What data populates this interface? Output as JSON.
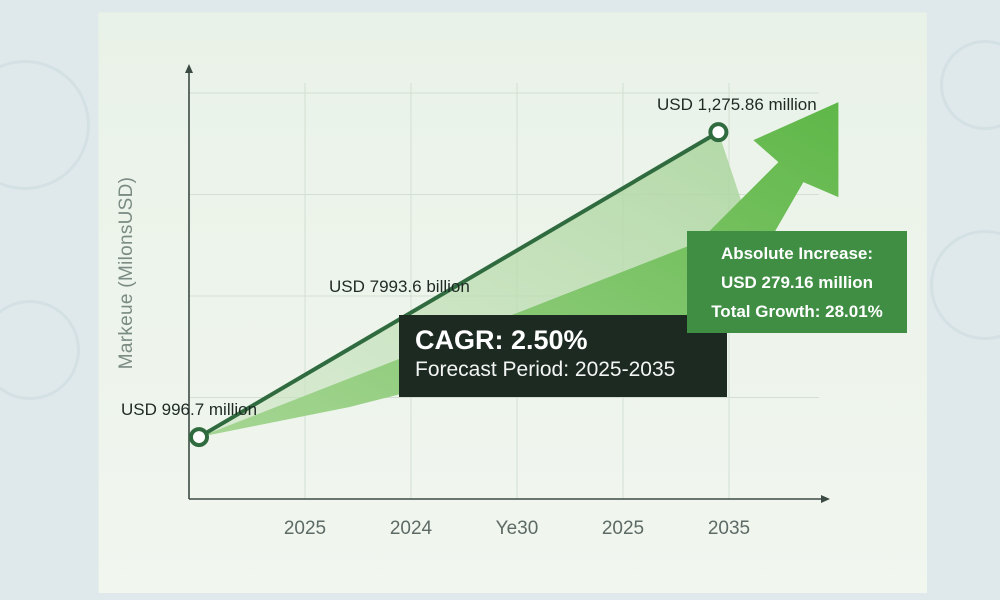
{
  "chart_data": {
    "type": "line",
    "ylabel": "Markeue (MilonsUSD)",
    "xlabel": "",
    "categories": [
      "2025",
      "2024",
      "Ye30",
      "2025",
      "2035"
    ],
    "series": [
      {
        "values": [
          {
            "x_index": -1,
            "y": 996.7
          },
          {
            "x_index": 3.9,
            "y": 1275.86
          }
        ]
      }
    ],
    "ylim": [
      940,
      1330
    ],
    "grid": true,
    "point_labels": [
      "USD 996.7 million",
      "USD 7993.6 billion",
      "USD 1,275.86 million"
    ],
    "annotations": {
      "cagr_title": "CAGR: 2.50%",
      "forecast_period": "Forecast Period: 2025-2035",
      "absolute_increase_title": "Absolute Increase:",
      "absolute_increase_value": "USD 279.16 million",
      "total_growth": "Total Growth: 28.01%"
    },
    "colors": {
      "line": "#2f6b3e",
      "area_light": "#b9dcae",
      "arrow": "#6fbf5a",
      "abs_box": "#3f8e44",
      "cagr_box": "#1d2a22"
    }
  }
}
